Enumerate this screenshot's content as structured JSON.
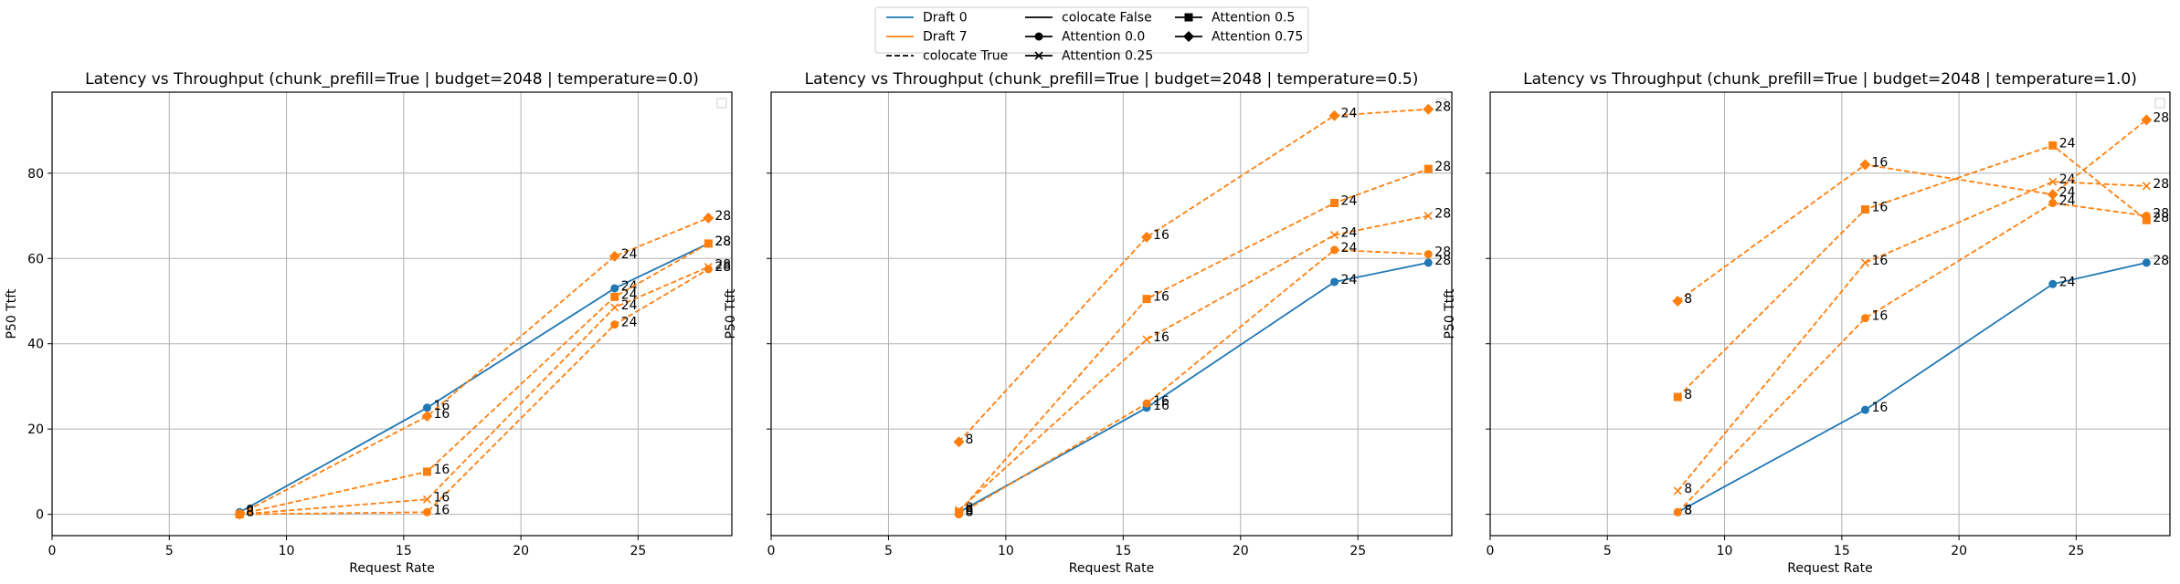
{
  "legend": {
    "placement": "top-center",
    "entries": [
      {
        "label": "Draft 0",
        "kind": "line",
        "color": "#1f77b4",
        "dash": "solid"
      },
      {
        "label": "Draft 7",
        "kind": "line",
        "color": "#ff7f0e",
        "dash": "solid"
      },
      {
        "label": "colocate True",
        "kind": "line",
        "color": "#000000",
        "dash": "dashed"
      },
      {
        "label": "colocate False",
        "kind": "line",
        "color": "#000000",
        "dash": "solid"
      },
      {
        "label": "Attention 0.0",
        "kind": "marker",
        "marker": "circle"
      },
      {
        "label": "Attention 0.25",
        "kind": "marker",
        "marker": "x"
      },
      {
        "label": "Attention 0.5",
        "kind": "marker",
        "marker": "square"
      },
      {
        "label": "Attention 0.75",
        "kind": "marker",
        "marker": "diamond"
      }
    ]
  },
  "chart_data": [
    {
      "type": "line",
      "title": "Latency vs Throughput (chunk_prefill=True | budget=2048 | temperature=0.0)",
      "xlabel": "Request Rate",
      "ylabel": "P50 Ttft",
      "xlim": [
        0,
        29
      ],
      "ylim": [
        -5,
        99
      ],
      "xticks": [
        0,
        5,
        10,
        15,
        20,
        25
      ],
      "yticks": [
        0,
        20,
        40,
        60,
        80
      ],
      "grid": true,
      "series": [
        {
          "color": "#1f77b4",
          "dash": "solid",
          "marker": "circle",
          "x": [
            8,
            16,
            24,
            28
          ],
          "y": [
            0.5,
            25,
            53,
            63.5
          ],
          "labels": [
            "8",
            "16",
            "24",
            "28"
          ]
        },
        {
          "color": "#ff7f0e",
          "dash": "dashed",
          "marker": "circle",
          "x": [
            8,
            16,
            24,
            28
          ],
          "y": [
            0,
            0.5,
            44.5,
            57.5
          ],
          "labels": [
            "8",
            "16",
            "24",
            "28"
          ]
        },
        {
          "color": "#ff7f0e",
          "dash": "dashed",
          "marker": "x",
          "x": [
            8,
            16,
            24,
            28
          ],
          "y": [
            0,
            3.5,
            48.5,
            58
          ],
          "labels": [
            "8",
            "16",
            "24",
            "28"
          ]
        },
        {
          "color": "#ff7f0e",
          "dash": "dashed",
          "marker": "square",
          "x": [
            8,
            16,
            24,
            28
          ],
          "y": [
            0,
            10,
            51,
            63.5
          ],
          "labels": [
            "8",
            "16",
            "24",
            "28"
          ]
        },
        {
          "color": "#ff7f0e",
          "dash": "dashed",
          "marker": "diamond",
          "x": [
            8,
            16,
            24,
            28
          ],
          "y": [
            0,
            23,
            60.5,
            69.5
          ],
          "labels": [
            "8",
            "16",
            "24",
            "28"
          ]
        }
      ]
    },
    {
      "type": "line",
      "title": "Latency vs Throughput (chunk_prefill=True | budget=2048 | temperature=0.5)",
      "xlabel": "Request Rate",
      "ylabel": "P50 Ttft",
      "xlim": [
        0,
        29
      ],
      "ylim": [
        -5,
        99
      ],
      "xticks": [
        0,
        5,
        10,
        15,
        20,
        25
      ],
      "yticks": [
        0,
        20,
        40,
        60,
        80
      ],
      "grid": true,
      "series": [
        {
          "color": "#1f77b4",
          "dash": "solid",
          "marker": "circle",
          "x": [
            8,
            16,
            24,
            28
          ],
          "y": [
            0.5,
            25,
            54.5,
            59
          ],
          "labels": [
            "8",
            "16",
            "24",
            "28"
          ]
        },
        {
          "color": "#ff7f0e",
          "dash": "dashed",
          "marker": "circle",
          "x": [
            8,
            16,
            24,
            28
          ],
          "y": [
            0,
            26,
            62,
            61
          ],
          "labels": [
            "8",
            "16",
            "24",
            "28"
          ]
        },
        {
          "color": "#ff7f0e",
          "dash": "dashed",
          "marker": "x",
          "x": [
            8,
            16,
            24,
            28
          ],
          "y": [
            1,
            41,
            65.5,
            70
          ],
          "labels": [
            "8",
            "16",
            "24",
            "28"
          ]
        },
        {
          "color": "#ff7f0e",
          "dash": "dashed",
          "marker": "square",
          "x": [
            8,
            16,
            24,
            28
          ],
          "y": [
            0.5,
            50.5,
            73,
            81
          ],
          "labels": [
            "8",
            "16",
            "24",
            "28"
          ]
        },
        {
          "color": "#ff7f0e",
          "dash": "dashed",
          "marker": "diamond",
          "x": [
            8,
            16,
            24,
            28
          ],
          "y": [
            17,
            65,
            93.5,
            95
          ],
          "labels": [
            "8",
            "16",
            "24",
            "28"
          ]
        }
      ]
    },
    {
      "type": "line",
      "title": "Latency vs Throughput (chunk_prefill=True | budget=2048 | temperature=1.0)",
      "xlabel": "Request Rate",
      "ylabel": "P50 Ttft",
      "xlim": [
        0,
        29
      ],
      "ylim": [
        -5,
        99
      ],
      "xticks": [
        0,
        5,
        10,
        15,
        20,
        25
      ],
      "yticks": [
        0,
        20,
        40,
        60,
        80
      ],
      "grid": true,
      "series": [
        {
          "color": "#1f77b4",
          "dash": "solid",
          "marker": "circle",
          "x": [
            8,
            16,
            24,
            28
          ],
          "y": [
            0.5,
            24.5,
            54,
            59
          ],
          "labels": [
            "8",
            "16",
            "24",
            "28"
          ]
        },
        {
          "color": "#ff7f0e",
          "dash": "dashed",
          "marker": "circle",
          "x": [
            8,
            16,
            24,
            28
          ],
          "y": [
            0.5,
            46,
            73,
            70
          ],
          "labels": [
            "8",
            "16",
            "24",
            "28"
          ]
        },
        {
          "color": "#ff7f0e",
          "dash": "dashed",
          "marker": "x",
          "x": [
            8,
            16,
            24,
            28
          ],
          "y": [
            5.5,
            59,
            78,
            77
          ],
          "labels": [
            "8",
            "16",
            "24",
            "28"
          ]
        },
        {
          "color": "#ff7f0e",
          "dash": "dashed",
          "marker": "square",
          "x": [
            8,
            16,
            24,
            28
          ],
          "y": [
            27.5,
            71.5,
            86.5,
            69
          ],
          "labels": [
            "8",
            "16",
            "24",
            "28"
          ]
        },
        {
          "color": "#ff7f0e",
          "dash": "dashed",
          "marker": "diamond",
          "x": [
            8,
            16,
            24,
            28
          ],
          "y": [
            50,
            82,
            75,
            92.5
          ],
          "labels": [
            "8",
            "16",
            "24",
            "28"
          ]
        }
      ]
    }
  ]
}
